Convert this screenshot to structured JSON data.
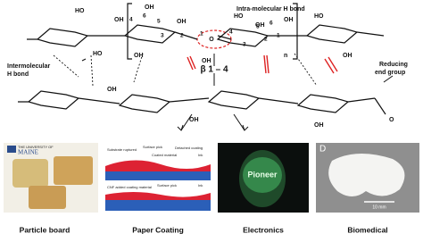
{
  "structure": {
    "intra_label": "Intra-molecular H bond",
    "inter_label": [
      "Intermolecular",
      "H bond"
    ],
    "reducing_label": [
      "Reducing",
      "end group"
    ],
    "linkage": "β 1 – 4",
    "ring_o": "O",
    "repeat": "n",
    "oh_labels": [
      "HO",
      "OH",
      "HO",
      "OH",
      "OH",
      "OH",
      "OH",
      "HO",
      "OH",
      "OH",
      "HO",
      "OH",
      "OH",
      "OH",
      "OH",
      "O"
    ],
    "ring_numbers": [
      "4",
      "6",
      "5",
      "3",
      "2",
      "1",
      "4",
      "5",
      "3",
      "2",
      "1",
      "6"
    ]
  },
  "panels": [
    {
      "caption": "Particle board",
      "texts": [
        "THE UNIVERSITY OF",
        "MAINE"
      ]
    },
    {
      "caption": "Paper Coating",
      "texts": [
        "Substrate ruptured",
        "Surface pick",
        "Detached coating",
        "Coated material",
        "Ink",
        "CNF added coating material",
        "Surface pick",
        "Ink"
      ]
    },
    {
      "caption": "Electronics",
      "texts": [
        "Pioneer"
      ]
    },
    {
      "caption": "Biomedical",
      "texts": [
        "D",
        "10 mm"
      ]
    }
  ]
}
